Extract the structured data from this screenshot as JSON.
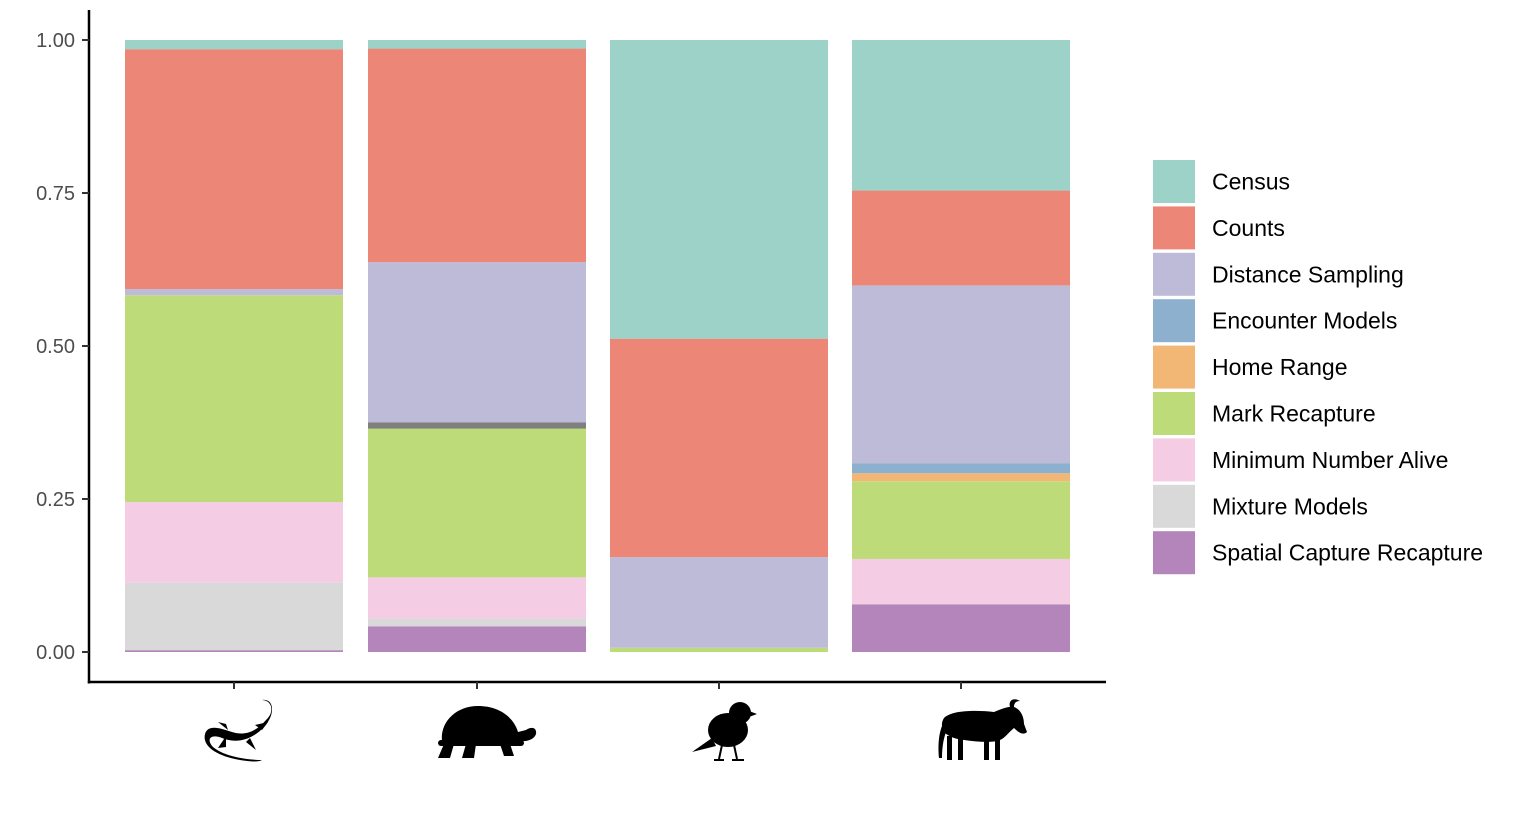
{
  "chart_data": {
    "type": "bar",
    "stacked": true,
    "categories": [
      "salamander-silhouette-icon",
      "tortoise-silhouette-icon",
      "bird-silhouette-icon",
      "wildebeest-silhouette-icon"
    ],
    "category_icons": [
      "salamander-icon",
      "tortoise-icon",
      "bird-icon",
      "wildebeest-icon"
    ],
    "ylim": [
      0,
      1
    ],
    "yticks": [
      0,
      0.25,
      0.5,
      0.75,
      1
    ],
    "ytick_labels": [
      "0.00",
      "0.25",
      "0.50",
      "0.75",
      "1.00"
    ],
    "title": "",
    "xlabel": "",
    "ylabel": "",
    "grid": false,
    "legend_position": "right",
    "series": [
      {
        "name": "Spatial Capture Recapture",
        "color": "#b385bb",
        "values": [
          0.003,
          0.042,
          0.0,
          0.078
        ]
      },
      {
        "name": "Mixture Models",
        "color": "#d9d9d9",
        "values": [
          0.11,
          0.013,
          0.0,
          0.0
        ]
      },
      {
        "name": "Minimum Number Alive",
        "color": "#f4cde4",
        "values": [
          0.132,
          0.067,
          0.0,
          0.074
        ]
      },
      {
        "name": "Mark Recapture",
        "color": "#bedb79",
        "values": [
          0.338,
          0.243,
          0.007,
          0.127
        ]
      },
      {
        "name": "Home Range",
        "color": "#f3b775",
        "values": [
          0.0,
          0.0,
          0.0,
          0.013
        ]
      },
      {
        "name": "Encounter Models",
        "color": "#8eb0cf",
        "values": [
          0.0,
          0.0,
          0.0,
          0.016
        ]
      },
      {
        "name": "",
        "color": "#7f7f7f",
        "values": [
          0.0,
          0.01,
          0.0,
          0.0
        ]
      },
      {
        "name": "Distance Sampling",
        "color": "#bebbd8",
        "values": [
          0.01,
          0.262,
          0.148,
          0.291
        ]
      },
      {
        "name": "Counts",
        "color": "#ec8778",
        "values": [
          0.392,
          0.349,
          0.357,
          0.155
        ]
      },
      {
        "name": "Census",
        "color": "#9cd2c8",
        "values": [
          0.015,
          0.014,
          0.488,
          0.246
        ]
      }
    ],
    "legend": [
      {
        "label": "Census",
        "color": "#9cd2c8"
      },
      {
        "label": "Counts",
        "color": "#ec8778"
      },
      {
        "label": "Distance Sampling",
        "color": "#bebbd8"
      },
      {
        "label": "Encounter Models",
        "color": "#8eb0cf"
      },
      {
        "label": "Home Range",
        "color": "#f3b775"
      },
      {
        "label": "Mark Recapture",
        "color": "#bedb79"
      },
      {
        "label": "Minimum Number Alive",
        "color": "#f4cde4"
      },
      {
        "label": "Mixture Models",
        "color": "#d9d9d9"
      },
      {
        "label": "Spatial Capture Recapture",
        "color": "#b385bb"
      }
    ]
  }
}
